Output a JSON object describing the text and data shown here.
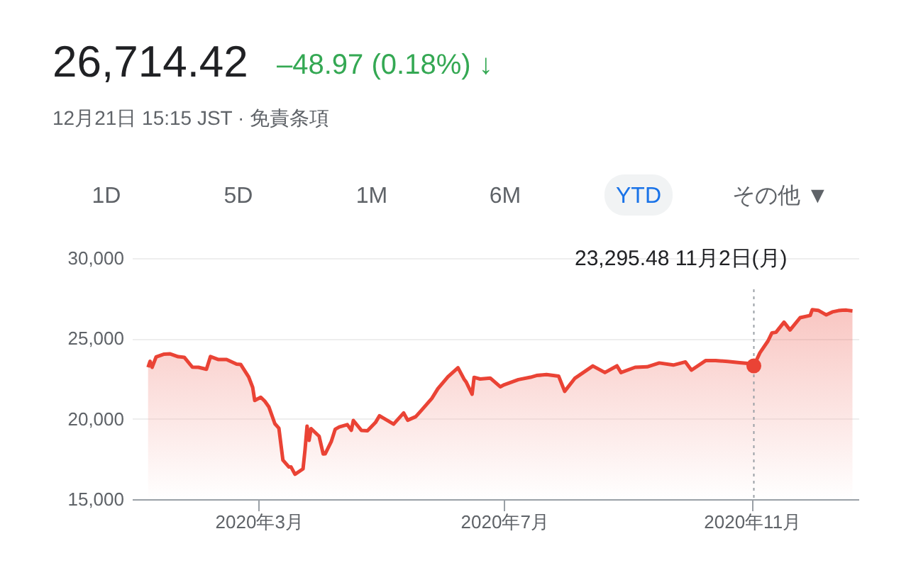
{
  "chart_data": {
    "type": "area",
    "title": "26,714.42",
    "subtitle": "–48.97 (0.18%) ↓",
    "annotations": [
      "12月21日 15:15 JST · 免責条項",
      "1D",
      "5D",
      "1M",
      "6M",
      "YTD",
      "その他 ▼",
      "23,295.48  11月2日(月)"
    ],
    "x": [
      "2020-01-06",
      "2020-01-07",
      "2020-01-08",
      "2020-01-10",
      "2020-01-14",
      "2020-01-17",
      "2020-01-21",
      "2020-01-24",
      "2020-01-28",
      "2020-01-31",
      "2020-02-04",
      "2020-02-06",
      "2020-02-10",
      "2020-02-14",
      "2020-02-19",
      "2020-02-21",
      "2020-02-25",
      "2020-02-27",
      "2020-02-28",
      "2020-03-02",
      "2020-03-04",
      "2020-03-06",
      "2020-03-09",
      "2020-03-11",
      "2020-03-13",
      "2020-03-16",
      "2020-03-17",
      "2020-03-19",
      "2020-03-23",
      "2020-03-24",
      "2020-03-25",
      "2020-03-26",
      "2020-03-27",
      "2020-03-31",
      "2020-04-02",
      "2020-04-03",
      "2020-04-06",
      "2020-04-08",
      "2020-04-10",
      "2020-04-14",
      "2020-04-16",
      "2020-04-17",
      "2020-04-21",
      "2020-04-24",
      "2020-04-28",
      "2020-04-30",
      "2020-05-07",
      "2020-05-12",
      "2020-05-14",
      "2020-05-18",
      "2020-05-21",
      "2020-05-26",
      "2020-05-29",
      "2020-06-03",
      "2020-06-08",
      "2020-06-11",
      "2020-06-12",
      "2020-06-15",
      "2020-06-16",
      "2020-06-19",
      "2020-06-24",
      "2020-06-29",
      "2020-07-01",
      "2020-07-08",
      "2020-07-14",
      "2020-07-17",
      "2020-07-22",
      "2020-07-28",
      "2020-07-31",
      "2020-08-05",
      "2020-08-14",
      "2020-08-20",
      "2020-08-26",
      "2020-08-28",
      "2020-09-04",
      "2020-09-10",
      "2020-09-16",
      "2020-09-23",
      "2020-09-29",
      "2020-10-02",
      "2020-10-09",
      "2020-10-14",
      "2020-10-20",
      "2020-10-26",
      "2020-10-30",
      "2020-11-02",
      "2020-11-05",
      "2020-11-09",
      "2020-11-11",
      "2020-11-13",
      "2020-11-17",
      "2020-11-20",
      "2020-11-25",
      "2020-11-30",
      "2020-12-01",
      "2020-12-04",
      "2020-12-08",
      "2020-12-11",
      "2020-12-14",
      "2020-12-16",
      "2020-12-18",
      "2020-12-21"
    ],
    "series": [
      {
        "color": "#ea4335",
        "values": [
          23204,
          23575,
          23204,
          23850,
          24025,
          24041,
          23865,
          23827,
          23216,
          23205,
          23084,
          23873,
          23686,
          23688,
          23400,
          23386,
          22605,
          21948,
          21142,
          21344,
          21100,
          20749,
          19698,
          19416,
          17431,
          17002,
          17011,
          16552,
          16887,
          18092,
          19546,
          18664,
          19389,
          18917,
          17818,
          17820,
          18576,
          19353,
          19498,
          19638,
          19290,
          19897,
          19280,
          19262,
          19771,
          20193,
          19674,
          20366,
          19914,
          20133,
          20552,
          21271,
          21877,
          22613,
          23178,
          22472,
          22305,
          21530,
          22582,
          22478,
          22534,
          21995,
          22121,
          22438,
          22587,
          22696,
          22751,
          22657,
          21710,
          22514,
          23289,
          22880,
          23296,
          22882,
          23205,
          23235,
          23475,
          23346,
          23539,
          23030,
          23620,
          23626,
          23567,
          23494,
          23450,
          23295.48,
          24105,
          24839,
          25349,
          25385,
          26014,
          25527,
          26296,
          26433,
          26787,
          26751,
          26467,
          26652,
          26732,
          26757,
          26763,
          26714.42
        ]
      }
    ],
    "xlim": [
      "2019-12-29",
      "2020-12-24"
    ],
    "xticks": [
      {
        "value": "2020-03-01",
        "label": "2020年3月"
      },
      {
        "value": "2020-07-01",
        "label": "2020年7月"
      },
      {
        "value": "2020-11-01",
        "label": "2020年11月"
      }
    ],
    "ylim": [
      15000,
      30000
    ],
    "yticks": [
      {
        "value": 15000,
        "label": "15,000"
      },
      {
        "value": 20000,
        "label": "20,000"
      },
      {
        "value": 25000,
        "label": "25,000"
      },
      {
        "value": 30000,
        "label": "30,000"
      }
    ],
    "ref_lines": [
      {
        "axis": "x",
        "value": "2020-11-02",
        "color": "#9aa0a6",
        "line_style": "dotted"
      }
    ],
    "grid": "y",
    "marker": "none",
    "line_style": "solid"
  }
}
